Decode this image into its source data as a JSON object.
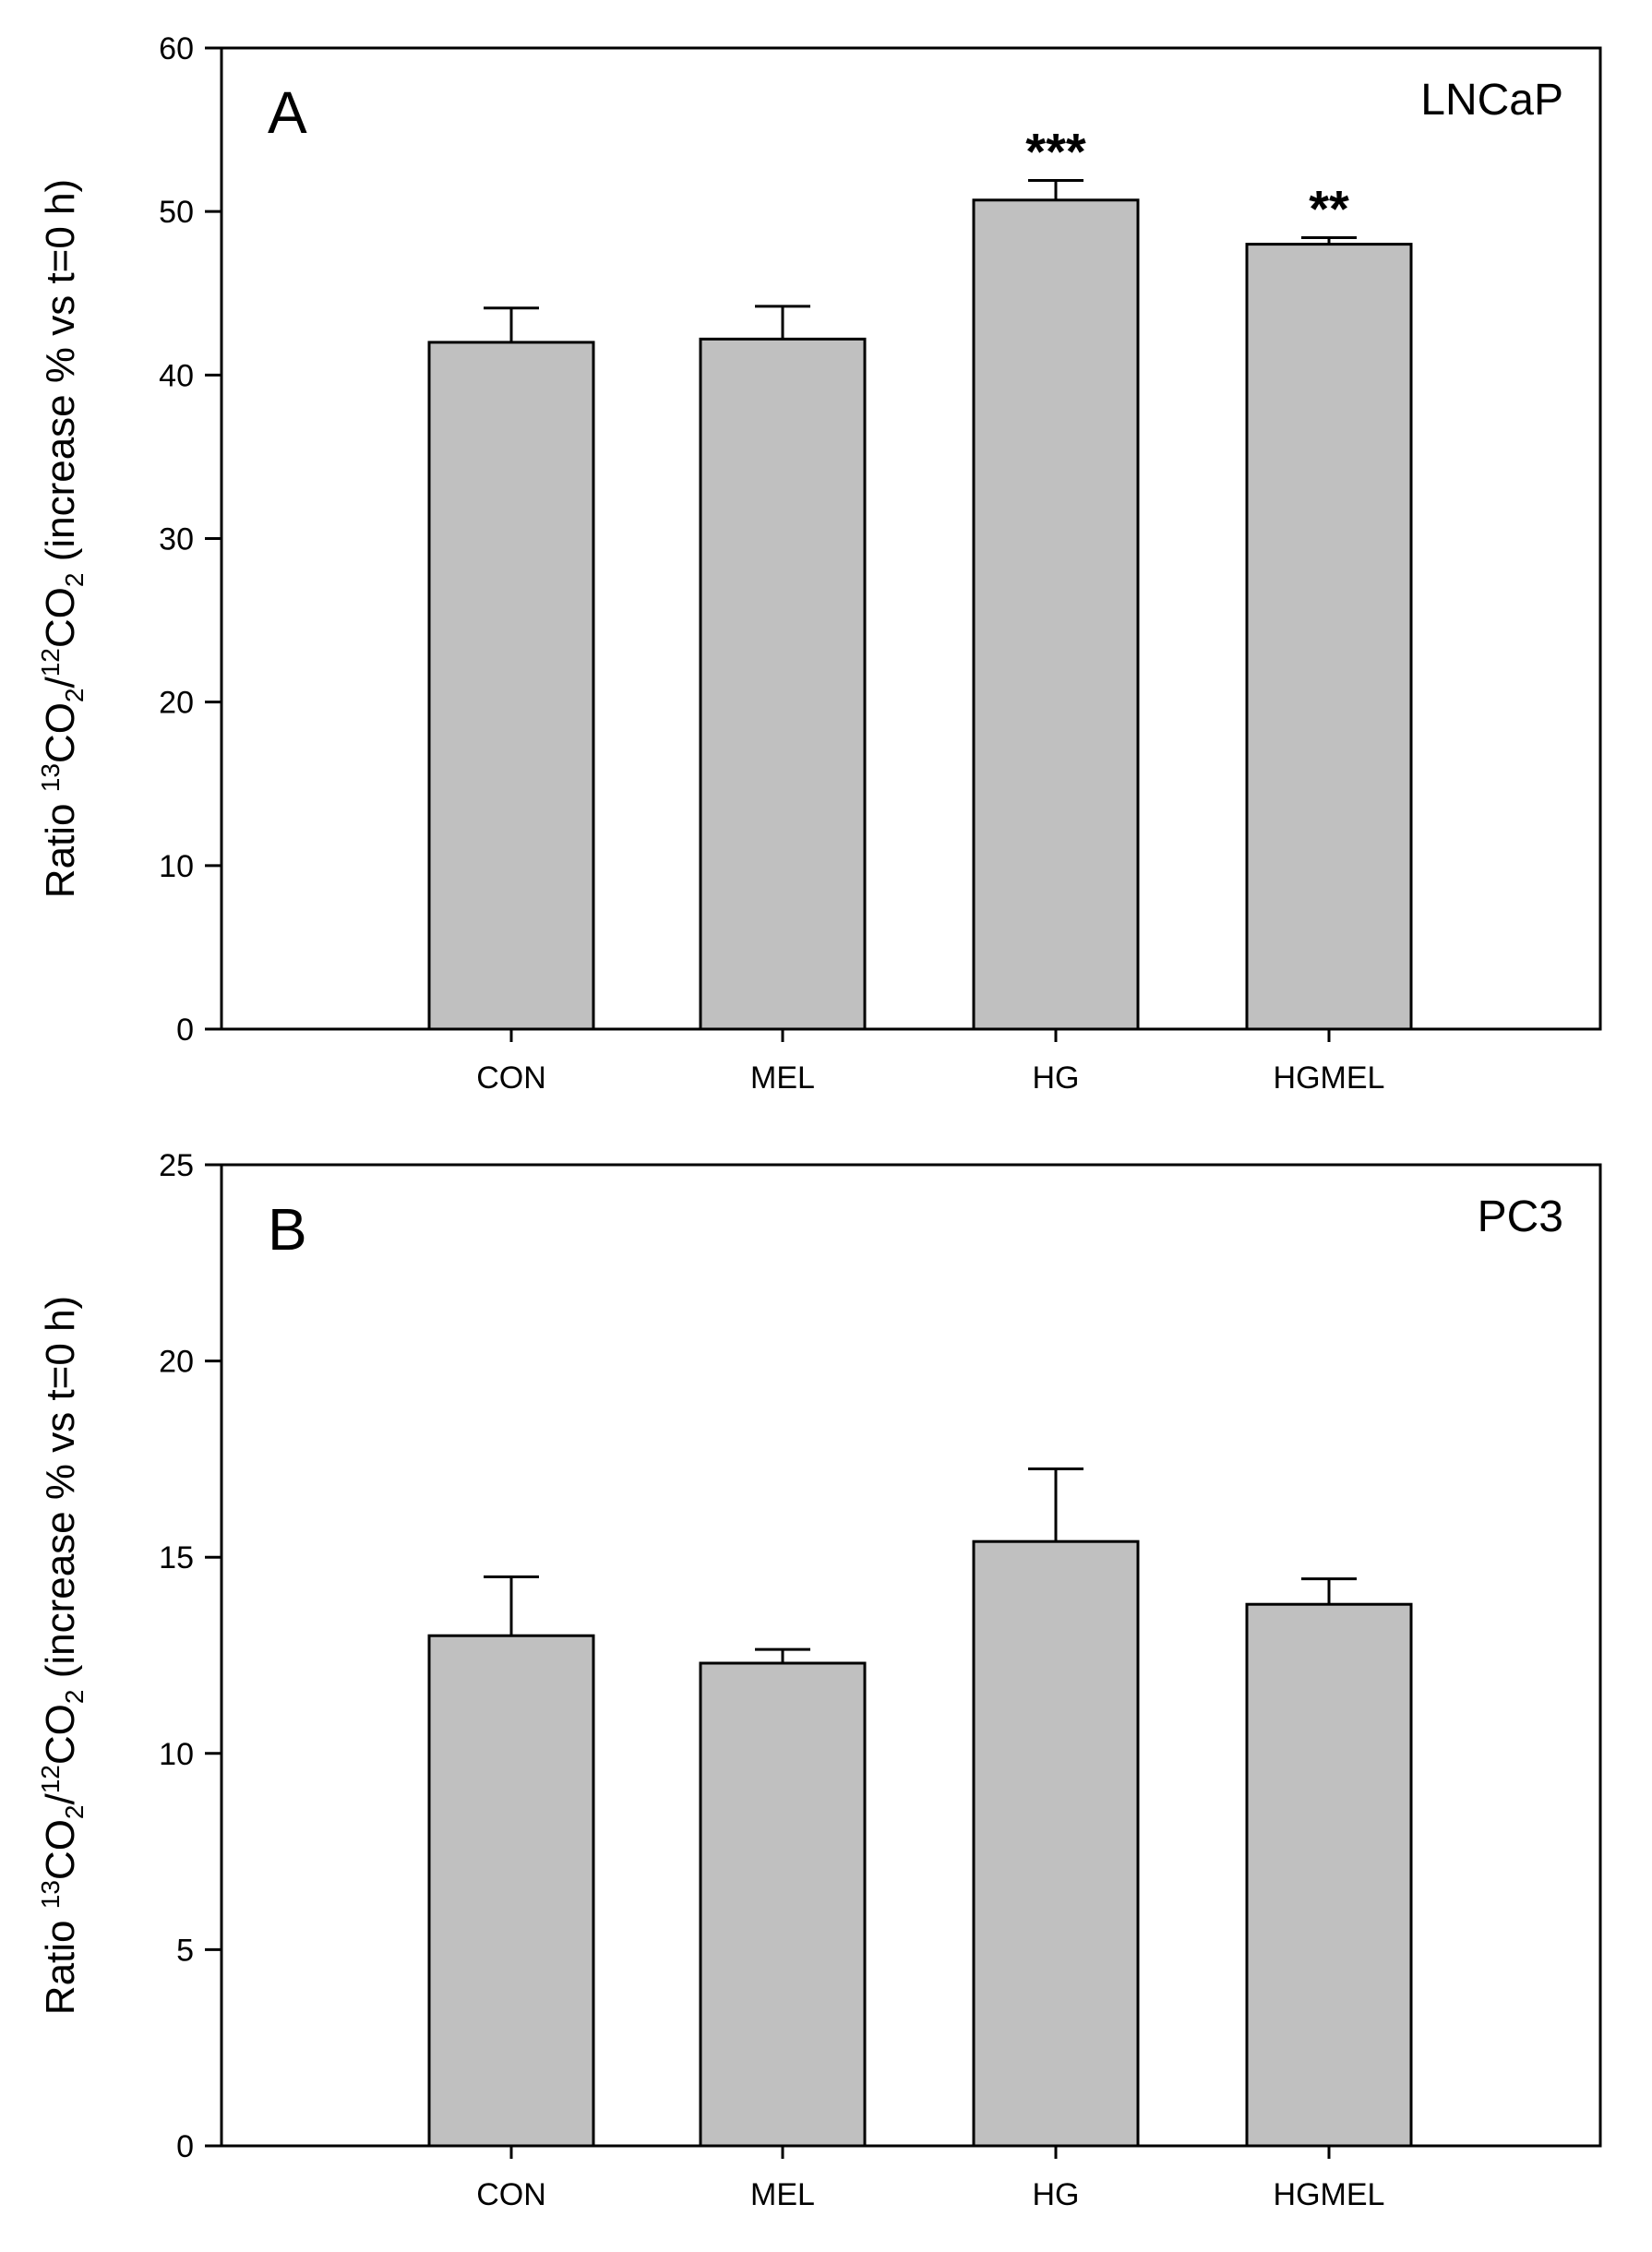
{
  "chart_data": [
    {
      "type": "bar",
      "panel": "A",
      "title": "LNCaP",
      "categories": [
        "CON",
        "MEL",
        "HG",
        "HGMEL"
      ],
      "values": [
        42,
        42.2,
        50.7,
        48
      ],
      "errors": [
        2.1,
        2.0,
        1.2,
        0.4
      ],
      "annotations": [
        "",
        "",
        "***",
        "**"
      ],
      "ylabel": {
        "prefix": "Ratio ",
        "sup1": "13",
        "mid1": "CO",
        "sub1": "2",
        "mid2": "/",
        "sup2": "12",
        "mid3": "CO",
        "sub2": "2",
        "suffix": " (increase % vs t=0 h)"
      },
      "ylim": [
        0,
        60
      ],
      "yticks": [
        0,
        10,
        20,
        30,
        40,
        50,
        60
      ],
      "ytick_labels": [
        "0",
        "10",
        "20",
        "30",
        "40",
        "50",
        "60"
      ],
      "grid": false
    },
    {
      "type": "bar",
      "panel": "B",
      "title": "PC3",
      "categories": [
        "CON",
        "MEL",
        "HG",
        "HGMEL"
      ],
      "values": [
        13,
        12.3,
        15.4,
        13.8
      ],
      "errors": [
        1.5,
        0.35,
        1.85,
        0.65
      ],
      "annotations": [
        "",
        "",
        "",
        ""
      ],
      "ylabel": {
        "prefix": "Ratio ",
        "sup1": "13",
        "mid1": "CO",
        "sub1": "2",
        "mid2": "/",
        "sup2": "12",
        "mid3": "CO",
        "sub2": "2",
        "suffix": " (increase % vs t=0 h)"
      },
      "ylim": [
        0,
        25
      ],
      "yticks": [
        0,
        5,
        10,
        15,
        20,
        25
      ],
      "ytick_labels": [
        "0",
        "5",
        "10",
        "15",
        "20",
        "25"
      ],
      "grid": false
    }
  ],
  "colors": {
    "bar_fill": "#c0c0c0",
    "stroke": "#000000",
    "background": "#ffffff"
  }
}
